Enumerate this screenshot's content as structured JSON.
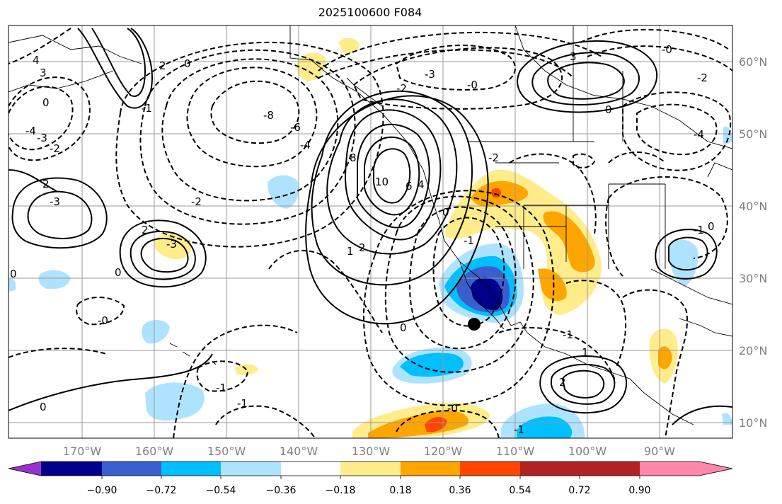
{
  "title": "2025100600 F084",
  "lat_labels": [
    "60°N",
    "50°N",
    "40°N",
    "30°N",
    "20°N",
    "10°N"
  ],
  "lon_labels": [
    "170°W",
    "160°W",
    "150°W",
    "140°W",
    "130°W",
    "120°W",
    "110°W",
    "100°W",
    "90°W"
  ],
  "colorbar": {
    "colors": [
      "#9932cc",
      "#00008b",
      "#3a5fcd",
      "#00bfff",
      "#aee3ff",
      "#ffffff",
      "#ffec8b",
      "#ffa500",
      "#ff4500",
      "#b22222",
      "#ff88aa"
    ],
    "tick_labels": [
      "−0.90",
      "−0.72",
      "−0.54",
      "−0.36",
      "−0.18",
      "0.18",
      "0.36",
      "0.54",
      "0.72",
      "0.90"
    ]
  },
  "contour_labels": [
    {
      "text": "4"
    },
    {
      "text": "3"
    },
    {
      "text": "2"
    },
    {
      "text": "0"
    },
    {
      "text": "-3"
    },
    {
      "text": "-4"
    },
    {
      "text": "-2"
    },
    {
      "text": "-1"
    },
    {
      "text": "0"
    },
    {
      "text": "-3"
    },
    {
      "text": "2"
    },
    {
      "text": "0"
    },
    {
      "text": "-3"
    },
    {
      "text": "-8"
    },
    {
      "text": "-6"
    },
    {
      "text": "-4"
    },
    {
      "text": "-2"
    },
    {
      "text": "8"
    },
    {
      "text": "10"
    },
    {
      "text": "6"
    },
    {
      "text": "4"
    },
    {
      "text": "2"
    },
    {
      "text": "1"
    },
    {
      "text": "-2"
    },
    {
      "text": "-0"
    },
    {
      "text": "-3"
    },
    {
      "text": "-2"
    },
    {
      "text": "-1"
    },
    {
      "text": "0"
    },
    {
      "text": "3"
    },
    {
      "text": "-0"
    },
    {
      "text": "-4"
    },
    {
      "text": "-2"
    },
    {
      "text": "0"
    },
    {
      "text": "-1"
    },
    {
      "text": "0"
    },
    {
      "text": "-0"
    },
    {
      "text": "-1"
    },
    {
      "text": "0"
    },
    {
      "text": "2"
    },
    {
      "text": "0"
    },
    {
      "text": "-1"
    },
    {
      "text": "0"
    },
    {
      "text": "-1"
    },
    {
      "text": "2"
    },
    {
      "text": "-0"
    },
    {
      "text": "1"
    },
    {
      "text": "-1"
    }
  ]
}
